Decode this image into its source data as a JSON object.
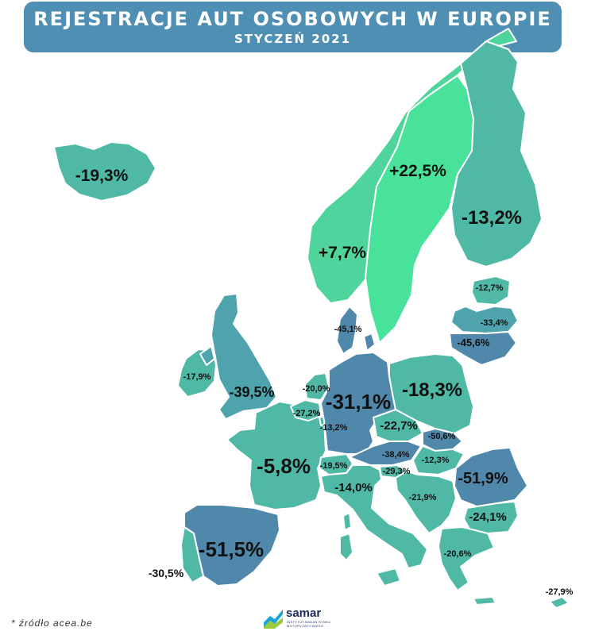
{
  "header": {
    "title": "REJESTRACJE AUT OSOBOWYCH W EUROPIE",
    "subtitle": "STYCZEŃ 2021"
  },
  "colors": {
    "header_bg": "#4e8fb3",
    "strong_growth": "#48e29a",
    "growth": "#4fd49b",
    "small_decline": "#4fb9a6",
    "medium_decline": "#4fa3ac",
    "large_decline": "#5088ac",
    "borders": "#ffffff"
  },
  "countries": [
    {
      "id": "iceland",
      "value": "-19,3%"
    },
    {
      "id": "sweden",
      "value": "+22,5%"
    },
    {
      "id": "norway",
      "value": "+7,7%"
    },
    {
      "id": "finland",
      "value": "-13,2%"
    },
    {
      "id": "estonia",
      "value": "-12,7%"
    },
    {
      "id": "latvia",
      "value": "-33,4%"
    },
    {
      "id": "lithuania",
      "value": "-45,6%"
    },
    {
      "id": "denmark",
      "value": "-45,1%"
    },
    {
      "id": "ireland",
      "value": "-17,9%"
    },
    {
      "id": "united-kingdom",
      "value": "-39,5%"
    },
    {
      "id": "netherlands",
      "value": "-20,0%"
    },
    {
      "id": "belgium",
      "value": "-27,2%"
    },
    {
      "id": "luxembourg",
      "value": "-13,2%"
    },
    {
      "id": "germany",
      "value": "-31,1%"
    },
    {
      "id": "poland",
      "value": "-18,3%"
    },
    {
      "id": "czechia",
      "value": "-22,7%"
    },
    {
      "id": "slovakia",
      "value": "-50,6%"
    },
    {
      "id": "austria",
      "value": "-38,4%"
    },
    {
      "id": "hungary",
      "value": "-12,3%"
    },
    {
      "id": "switzerland",
      "value": "-19,5%"
    },
    {
      "id": "slovenia",
      "value": "-29,3%"
    },
    {
      "id": "croatia",
      "value": "-21,9%"
    },
    {
      "id": "france",
      "value": "-5,8%"
    },
    {
      "id": "italy",
      "value": "-14,0%"
    },
    {
      "id": "romania",
      "value": "-51,9%"
    },
    {
      "id": "bulgaria",
      "value": "-24,1%"
    },
    {
      "id": "greece",
      "value": "-20,6%"
    },
    {
      "id": "spain",
      "value": "-51,5%"
    },
    {
      "id": "portugal",
      "value": "-30,5%"
    },
    {
      "id": "cyprus",
      "value": "-27,9%"
    }
  ],
  "footer": {
    "source": "* źródło acea.be",
    "logo_name": "samar",
    "logo_tagline": "INSTYTUT BADAŃ RYNKU MOTORYZACYJNEGO"
  }
}
